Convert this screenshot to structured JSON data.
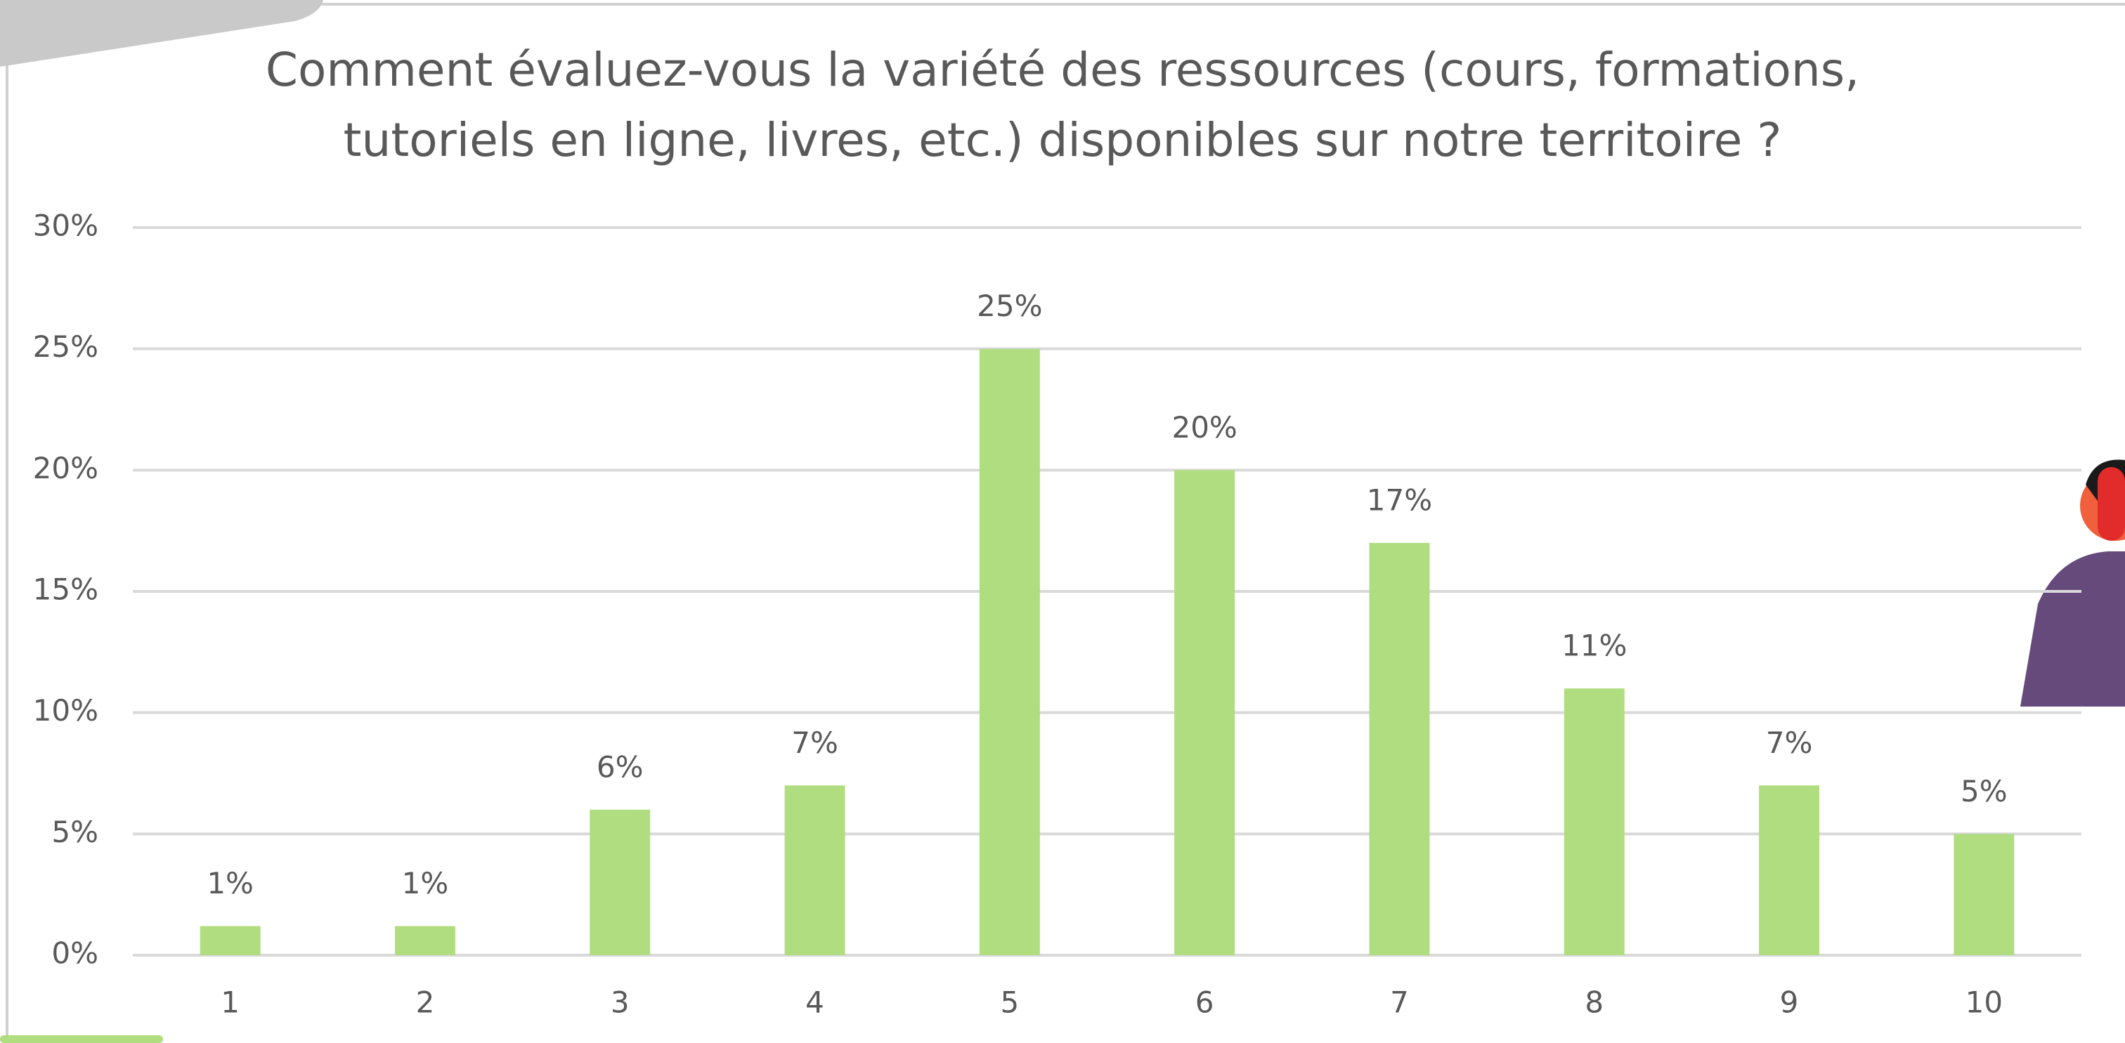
{
  "chart_data": {
    "type": "bar",
    "title": "Comment évaluez-vous la variété des ressources (cours, formations, tutoriels en ligne, livres, etc.) disponibles sur notre territoire ?",
    "categories": [
      "1",
      "2",
      "3",
      "4",
      "5",
      "6",
      "7",
      "8",
      "9",
      "10"
    ],
    "values": [
      1.2,
      1.2,
      6,
      7,
      25,
      20,
      17,
      11,
      7,
      5
    ],
    "value_labels": [
      "1%",
      "1%",
      "6%",
      "7%",
      "25%",
      "20%",
      "17%",
      "11%",
      "7%",
      "5%"
    ],
    "color": "#b1dd81",
    "ylim": [
      0,
      30
    ],
    "yticks": [
      {
        "value": 0,
        "label": "0%"
      },
      {
        "value": 5,
        "label": "5%"
      },
      {
        "value": 10,
        "label": "10%"
      },
      {
        "value": 15,
        "label": "15%"
      },
      {
        "value": 20,
        "label": "20%"
      },
      {
        "value": 25,
        "label": "25%"
      },
      {
        "value": 30,
        "label": "30%"
      }
    ],
    "grid": true
  }
}
